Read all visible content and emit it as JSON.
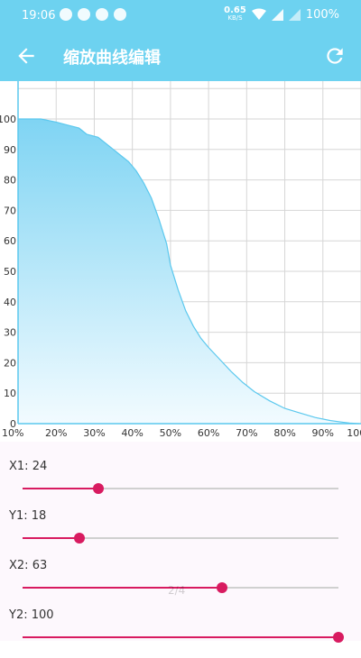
{
  "status": {
    "time": "19:06",
    "net_speed": "0.65",
    "net_unit": "KB/S",
    "battery": "100%"
  },
  "toolbar": {
    "title": "缩放曲线编辑",
    "back_icon": "arrow-back-icon",
    "refresh_icon": "refresh-icon"
  },
  "chart_data": {
    "type": "area",
    "x_ticks": [
      "10%",
      "20%",
      "30%",
      "40%",
      "50%",
      "60%",
      "70%",
      "80%",
      "90%",
      "100%"
    ],
    "y_ticks": [
      "0",
      "10",
      "20",
      "30",
      "40",
      "50",
      "60",
      "70",
      "80",
      "90",
      "100"
    ],
    "xlim": [
      10,
      100
    ],
    "ylim": [
      0,
      100
    ],
    "grid": true,
    "series": [
      {
        "x": [
          10,
          16,
          20,
          23,
          26,
          28,
          31,
          33,
          35,
          37,
          39,
          41,
          43,
          45,
          47,
          49,
          50,
          52,
          54,
          56,
          58,
          60,
          63,
          66,
          69,
          72,
          76,
          80,
          84,
          88,
          92,
          95,
          97,
          99.5
        ],
        "y": [
          100,
          100,
          99,
          98,
          97,
          95,
          94,
          92,
          90,
          88,
          86,
          83,
          79,
          74,
          67,
          59,
          52,
          44,
          37,
          32,
          28,
          25,
          21,
          17,
          13.5,
          10.5,
          7.5,
          5,
          3.5,
          2,
          1,
          0.5,
          0.2,
          0
        ],
        "color": "#5bc8ee"
      }
    ]
  },
  "params": [
    {
      "label": "X1: 24",
      "value": 24
    },
    {
      "label": "Y1: 18",
      "value": 18
    },
    {
      "label": "X2: 63",
      "value": 63
    },
    {
      "label": "Y2: 100",
      "value": 100
    }
  ],
  "pager": "2/4"
}
